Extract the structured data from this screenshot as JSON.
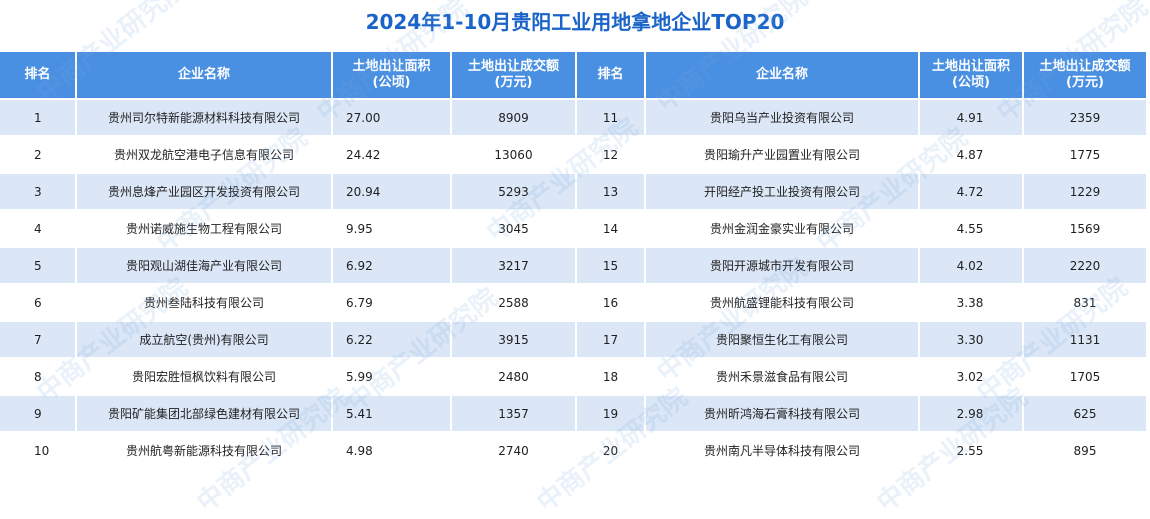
{
  "title": "2024年1-10月贵阳工业用地拿地企业TOP20",
  "watermark": "中商产业研究院",
  "headers": {
    "rank": "排名",
    "company": "企业名称",
    "area_line1": "土地出让面积",
    "area_line2": "(公顷)",
    "price_line1": "土地出让成交额",
    "price_line2": "(万元)"
  },
  "rows": [
    {
      "left": {
        "rank": "1",
        "company": "贵州司尔特新能源材料科技有限公司",
        "area": "27.00",
        "price": "8909"
      },
      "right": {
        "rank": "11",
        "company": "贵阳乌当产业投资有限公司",
        "area": "4.91",
        "price": "2359"
      }
    },
    {
      "left": {
        "rank": "2",
        "company": "贵州双龙航空港电子信息有限公司",
        "area": "24.42",
        "price": "13060"
      },
      "right": {
        "rank": "12",
        "company": "贵阳瑜升产业园置业有限公司",
        "area": "4.87",
        "price": "1775"
      }
    },
    {
      "left": {
        "rank": "3",
        "company": "贵州息烽产业园区开发投资有限公司",
        "area": "20.94",
        "price": "5293"
      },
      "right": {
        "rank": "13",
        "company": "开阳经产投工业投资有限公司",
        "area": "4.72",
        "price": "1229"
      }
    },
    {
      "left": {
        "rank": "4",
        "company": "贵州诺威施生物工程有限公司",
        "area": "9.95",
        "price": "3045"
      },
      "right": {
        "rank": "14",
        "company": "贵州金润金豪实业有限公司",
        "area": "4.55",
        "price": "1569"
      }
    },
    {
      "left": {
        "rank": "5",
        "company": "贵阳观山湖佳海产业有限公司",
        "area": "6.92",
        "price": "3217"
      },
      "right": {
        "rank": "15",
        "company": "贵阳开源城市开发有限公司",
        "area": "4.02",
        "price": "2220"
      }
    },
    {
      "left": {
        "rank": "6",
        "company": "贵州叁陆科技有限公司",
        "area": "6.79",
        "price": "2588"
      },
      "right": {
        "rank": "16",
        "company": "贵州航盛锂能科技有限公司",
        "area": "3.38",
        "price": "831"
      }
    },
    {
      "left": {
        "rank": "7",
        "company": "成立航空(贵州)有限公司",
        "area": "6.22",
        "price": "3915"
      },
      "right": {
        "rank": "17",
        "company": "贵阳聚恒生化工有限公司",
        "area": "3.30",
        "price": "1131"
      }
    },
    {
      "left": {
        "rank": "8",
        "company": "贵阳宏胜恒枫饮料有限公司",
        "area": "5.99",
        "price": "2480"
      },
      "right": {
        "rank": "18",
        "company": "贵州禾景滋食品有限公司",
        "area": "3.02",
        "price": "1705"
      }
    },
    {
      "left": {
        "rank": "9",
        "company": "贵阳矿能集团北部绿色建材有限公司",
        "area": "5.41",
        "price": "1357"
      },
      "right": {
        "rank": "19",
        "company": "贵州昕鸿海石膏科技有限公司",
        "area": "2.98",
        "price": "625"
      }
    },
    {
      "left": {
        "rank": "10",
        "company": "贵州航粤新能源科技有限公司",
        "area": "4.98",
        "price": "2740"
      },
      "right": {
        "rank": "20",
        "company": "贵州南凡半导体科技有限公司",
        "area": "2.55",
        "price": "895"
      }
    }
  ],
  "colors": {
    "title": "#1a63c8",
    "header_bg": "#4a90e2",
    "odd_row_bg": "#dbe6f6",
    "even_row_bg": "#ffffff"
  }
}
